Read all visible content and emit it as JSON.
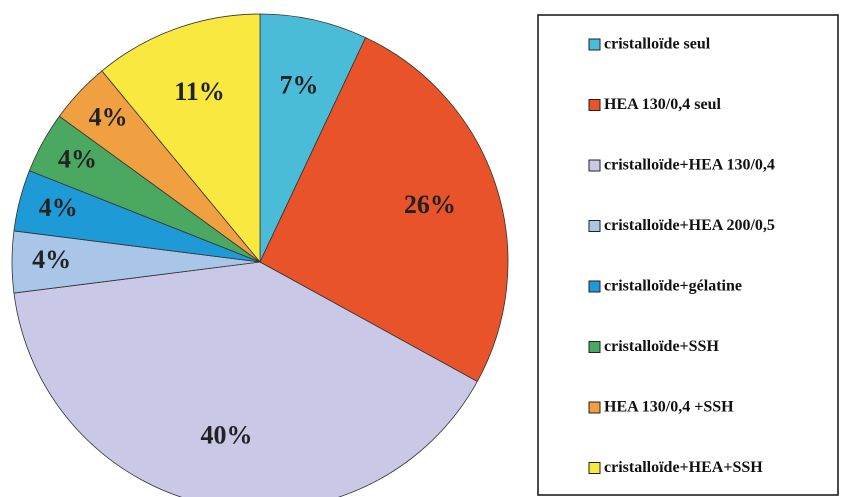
{
  "chart_data": {
    "type": "pie",
    "categories": [
      "cristalloïde seul",
      "HEA 130/0,4 seul",
      "cristalloïde+HEA 130/0,4",
      "cristalloïde+HEA 200/0,5",
      "cristalloïde+gélatine",
      "cristalloïde+SSH",
      "HEA 130/0,4 +SSH",
      "cristalloïde+HEA+SSH"
    ],
    "values": [
      7,
      26,
      40,
      4,
      4,
      4,
      4,
      11
    ],
    "value_labels": [
      "7%",
      "26%",
      "40%",
      "4%",
      "4%",
      "4%",
      "4%",
      "11%"
    ],
    "colors": [
      "#4bbcd8",
      "#e8532a",
      "#c9c8e6",
      "#a9c6e8",
      "#1e9ad6",
      "#4aa860",
      "#f0a040",
      "#f8e840"
    ],
    "legend": "right"
  }
}
